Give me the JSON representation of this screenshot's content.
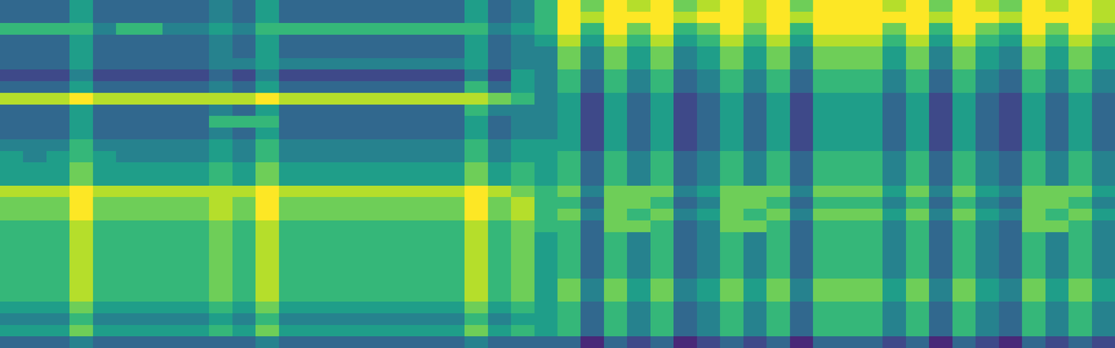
{
  "chart_data": {
    "type": "heatmap",
    "tick_labels": false,
    "zlim": [
      0,
      9
    ],
    "cells": [
      [
        3,
        3,
        3,
        5,
        3,
        3,
        3,
        3,
        3,
        4,
        3,
        5,
        3,
        3,
        3,
        3,
        3,
        3,
        3,
        3,
        5,
        3,
        4,
        6,
        9,
        7,
        9,
        8,
        9,
        7,
        8,
        9,
        8,
        9,
        7,
        9,
        9,
        9,
        8,
        9,
        7,
        9,
        8,
        7,
        9,
        8,
        9,
        8
      ],
      [
        3,
        3,
        3,
        5,
        3,
        3,
        3,
        3,
        3,
        4,
        3,
        5,
        3,
        3,
        3,
        3,
        3,
        3,
        3,
        3,
        5,
        3,
        4,
        6,
        9,
        8,
        9,
        9,
        9,
        8,
        9,
        9,
        8,
        9,
        8,
        9,
        9,
        9,
        9,
        9,
        8,
        9,
        9,
        8,
        9,
        9,
        9,
        8
      ],
      [
        6,
        6,
        6,
        6,
        4,
        6,
        6,
        4,
        4,
        5,
        4,
        6,
        6,
        6,
        6,
        6,
        6,
        6,
        6,
        6,
        6,
        4,
        5,
        6,
        9,
        6,
        9,
        7,
        9,
        6,
        7,
        9,
        7,
        9,
        6,
        9,
        9,
        9,
        7,
        9,
        6,
        9,
        7,
        6,
        9,
        7,
        9,
        7
      ],
      [
        3,
        3,
        3,
        5,
        3,
        3,
        3,
        3,
        3,
        4,
        3,
        5,
        3,
        3,
        3,
        3,
        3,
        3,
        3,
        3,
        5,
        3,
        4,
        5,
        8,
        5,
        8,
        6,
        8,
        5,
        6,
        8,
        6,
        8,
        5,
        8,
        8,
        8,
        6,
        8,
        5,
        8,
        6,
        5,
        8,
        6,
        8,
        6
      ],
      [
        3,
        3,
        3,
        5,
        3,
        3,
        3,
        3,
        3,
        4,
        3,
        5,
        3,
        3,
        3,
        3,
        3,
        3,
        3,
        3,
        5,
        3,
        4,
        4,
        7,
        4,
        7,
        5,
        7,
        4,
        5,
        7,
        5,
        7,
        4,
        7,
        7,
        7,
        5,
        7,
        4,
        7,
        5,
        4,
        7,
        5,
        7,
        5
      ],
      [
        3,
        3,
        3,
        5,
        3,
        3,
        3,
        3,
        3,
        4,
        4,
        5,
        4,
        4,
        4,
        4,
        4,
        4,
        4,
        4,
        5,
        3,
        4,
        4,
        7,
        4,
        7,
        5,
        7,
        4,
        5,
        7,
        5,
        7,
        4,
        7,
        7,
        7,
        5,
        7,
        4,
        7,
        5,
        4,
        7,
        5,
        7,
        5
      ],
      [
        2,
        2,
        2,
        4,
        2,
        2,
        2,
        2,
        2,
        3,
        2,
        4,
        2,
        2,
        2,
        2,
        2,
        2,
        2,
        2,
        4,
        2,
        5,
        4,
        6,
        3,
        6,
        4,
        6,
        3,
        4,
        6,
        4,
        6,
        3,
        6,
        6,
        6,
        4,
        6,
        3,
        6,
        4,
        3,
        6,
        4,
        6,
        4
      ],
      [
        3,
        3,
        3,
        5,
        3,
        3,
        3,
        3,
        3,
        4,
        3,
        5,
        3,
        3,
        3,
        3,
        3,
        3,
        3,
        3,
        6,
        3,
        5,
        4,
        6,
        3,
        6,
        4,
        6,
        3,
        4,
        6,
        4,
        6,
        3,
        6,
        6,
        6,
        4,
        6,
        3,
        6,
        4,
        3,
        6,
        4,
        6,
        4
      ],
      [
        8,
        8,
        8,
        9,
        8,
        8,
        8,
        8,
        8,
        8,
        8,
        9,
        8,
        8,
        8,
        8,
        8,
        8,
        8,
        8,
        8,
        7,
        6,
        4,
        5,
        2,
        5,
        3,
        5,
        2,
        3,
        5,
        3,
        5,
        2,
        5,
        5,
        5,
        3,
        5,
        2,
        5,
        3,
        2,
        5,
        3,
        5,
        3
      ],
      [
        3,
        3,
        3,
        5,
        3,
        3,
        3,
        3,
        3,
        4,
        3,
        5,
        3,
        3,
        3,
        3,
        3,
        3,
        3,
        3,
        6,
        4,
        4,
        4,
        5,
        2,
        5,
        3,
        5,
        2,
        3,
        5,
        3,
        5,
        2,
        5,
        5,
        5,
        3,
        5,
        2,
        5,
        3,
        2,
        5,
        3,
        5,
        3
      ],
      [
        3,
        3,
        3,
        5,
        3,
        3,
        3,
        3,
        3,
        6,
        6,
        6,
        3,
        3,
        3,
        3,
        3,
        3,
        3,
        3,
        5,
        3,
        4,
        4,
        5,
        2,
        5,
        3,
        5,
        2,
        3,
        5,
        3,
        5,
        2,
        5,
        5,
        5,
        3,
        5,
        2,
        5,
        3,
        2,
        5,
        3,
        5,
        3
      ],
      [
        3,
        3,
        3,
        5,
        3,
        3,
        3,
        3,
        3,
        4,
        3,
        5,
        3,
        3,
        3,
        3,
        3,
        3,
        3,
        3,
        5,
        3,
        4,
        4,
        5,
        2,
        5,
        3,
        5,
        2,
        3,
        5,
        3,
        5,
        2,
        5,
        5,
        5,
        3,
        5,
        2,
        5,
        3,
        2,
        5,
        3,
        5,
        3
      ],
      [
        4,
        4,
        4,
        6,
        4,
        4,
        4,
        4,
        4,
        5,
        4,
        6,
        4,
        4,
        4,
        4,
        4,
        4,
        4,
        4,
        6,
        4,
        5,
        5,
        5,
        2,
        5,
        3,
        5,
        2,
        3,
        5,
        3,
        5,
        2,
        5,
        5,
        5,
        3,
        5,
        2,
        5,
        3,
        2,
        5,
        3,
        5,
        3
      ],
      [
        5,
        4,
        5,
        6,
        5,
        4,
        4,
        4,
        4,
        5,
        4,
        6,
        4,
        4,
        4,
        4,
        4,
        4,
        4,
        4,
        6,
        4,
        5,
        5,
        6,
        3,
        6,
        4,
        6,
        3,
        4,
        6,
        4,
        6,
        3,
        6,
        6,
        6,
        4,
        6,
        3,
        6,
        4,
        3,
        6,
        4,
        6,
        4
      ],
      [
        5,
        5,
        5,
        7,
        5,
        5,
        5,
        5,
        5,
        6,
        5,
        7,
        5,
        5,
        5,
        5,
        5,
        5,
        5,
        5,
        7,
        5,
        6,
        5,
        6,
        3,
        6,
        4,
        6,
        3,
        4,
        6,
        4,
        6,
        3,
        6,
        6,
        6,
        4,
        6,
        3,
        6,
        4,
        3,
        6,
        4,
        6,
        4
      ],
      [
        5,
        5,
        5,
        7,
        5,
        5,
        5,
        5,
        5,
        6,
        5,
        7,
        5,
        5,
        5,
        5,
        5,
        5,
        5,
        5,
        7,
        5,
        6,
        5,
        6,
        3,
        6,
        4,
        6,
        3,
        4,
        6,
        4,
        6,
        3,
        6,
        6,
        6,
        4,
        6,
        3,
        6,
        4,
        3,
        6,
        4,
        6,
        4
      ],
      [
        8,
        8,
        8,
        9,
        8,
        8,
        8,
        8,
        8,
        8,
        8,
        9,
        8,
        8,
        8,
        8,
        8,
        8,
        8,
        8,
        9,
        8,
        7,
        6,
        7,
        4,
        7,
        7,
        7,
        4,
        5,
        7,
        7,
        7,
        4,
        7,
        7,
        7,
        5,
        7,
        4,
        7,
        5,
        4,
        7,
        7,
        7,
        5
      ],
      [
        7,
        7,
        7,
        9,
        7,
        7,
        7,
        7,
        7,
        8,
        7,
        9,
        7,
        7,
        7,
        7,
        7,
        7,
        7,
        7,
        9,
        7,
        8,
        6,
        6,
        3,
        7,
        7,
        6,
        3,
        4,
        7,
        7,
        6,
        3,
        6,
        6,
        6,
        4,
        6,
        3,
        6,
        4,
        3,
        7,
        7,
        6,
        4
      ],
      [
        7,
        7,
        7,
        9,
        7,
        7,
        7,
        7,
        7,
        8,
        7,
        9,
        7,
        7,
        7,
        7,
        7,
        7,
        7,
        7,
        9,
        7,
        8,
        6,
        7,
        4,
        7,
        6,
        7,
        4,
        5,
        7,
        6,
        7,
        4,
        7,
        7,
        7,
        5,
        7,
        4,
        7,
        5,
        4,
        7,
        6,
        7,
        5
      ],
      [
        6,
        6,
        6,
        8,
        6,
        6,
        6,
        6,
        6,
        7,
        6,
        8,
        6,
        6,
        6,
        6,
        6,
        6,
        6,
        6,
        8,
        6,
        7,
        6,
        6,
        3,
        7,
        7,
        6,
        3,
        4,
        7,
        7,
        6,
        3,
        6,
        6,
        6,
        4,
        6,
        3,
        6,
        4,
        3,
        7,
        7,
        6,
        4
      ],
      [
        6,
        6,
        6,
        8,
        6,
        6,
        6,
        6,
        6,
        7,
        6,
        8,
        6,
        6,
        6,
        6,
        6,
        6,
        6,
        6,
        8,
        6,
        7,
        5,
        6,
        3,
        6,
        4,
        6,
        3,
        4,
        6,
        4,
        6,
        3,
        6,
        6,
        6,
        4,
        6,
        3,
        6,
        4,
        3,
        6,
        4,
        6,
        4
      ],
      [
        6,
        6,
        6,
        8,
        6,
        6,
        6,
        6,
        6,
        7,
        6,
        8,
        6,
        6,
        6,
        6,
        6,
        6,
        6,
        6,
        8,
        6,
        7,
        5,
        6,
        3,
        6,
        4,
        6,
        3,
        4,
        6,
        4,
        6,
        3,
        6,
        6,
        6,
        4,
        6,
        3,
        6,
        4,
        3,
        6,
        4,
        6,
        4
      ],
      [
        6,
        6,
        6,
        8,
        6,
        6,
        6,
        6,
        6,
        7,
        6,
        8,
        6,
        6,
        6,
        6,
        6,
        6,
        6,
        6,
        8,
        6,
        7,
        5,
        6,
        3,
        6,
        4,
        6,
        3,
        4,
        6,
        4,
        6,
        3,
        6,
        6,
        6,
        4,
        6,
        3,
        6,
        4,
        3,
        6,
        4,
        6,
        4
      ],
      [
        6,
        6,
        6,
        8,
        6,
        6,
        6,
        6,
        6,
        7,
        6,
        8,
        6,
        6,
        6,
        6,
        6,
        6,
        6,
        6,
        8,
        6,
        7,
        5,
        6,
        3,
        6,
        4,
        6,
        3,
        4,
        6,
        4,
        6,
        3,
        6,
        6,
        6,
        4,
        6,
        3,
        6,
        4,
        3,
        6,
        4,
        6,
        4
      ],
      [
        6,
        6,
        6,
        8,
        6,
        6,
        6,
        6,
        6,
        7,
        6,
        8,
        6,
        6,
        6,
        6,
        6,
        6,
        6,
        6,
        8,
        6,
        7,
        5,
        7,
        4,
        7,
        5,
        7,
        4,
        5,
        7,
        5,
        7,
        4,
        7,
        7,
        7,
        5,
        7,
        4,
        7,
        5,
        4,
        7,
        5,
        7,
        5
      ],
      [
        6,
        6,
        6,
        8,
        6,
        6,
        6,
        6,
        6,
        7,
        6,
        8,
        6,
        6,
        6,
        6,
        6,
        6,
        6,
        6,
        8,
        6,
        7,
        5,
        7,
        4,
        7,
        5,
        7,
        4,
        5,
        7,
        5,
        7,
        4,
        7,
        7,
        7,
        5,
        7,
        4,
        7,
        5,
        4,
        7,
        5,
        7,
        5
      ],
      [
        5,
        5,
        5,
        7,
        5,
        5,
        5,
        5,
        5,
        6,
        5,
        7,
        5,
        5,
        5,
        5,
        5,
        5,
        5,
        5,
        7,
        5,
        6,
        5,
        6,
        3,
        6,
        4,
        6,
        3,
        4,
        6,
        4,
        6,
        3,
        6,
        6,
        6,
        4,
        6,
        3,
        6,
        4,
        3,
        6,
        4,
        6,
        4
      ],
      [
        4,
        4,
        4,
        6,
        4,
        4,
        4,
        4,
        4,
        5,
        4,
        6,
        4,
        4,
        4,
        4,
        4,
        4,
        4,
        4,
        6,
        4,
        5,
        5,
        6,
        3,
        6,
        4,
        6,
        3,
        4,
        6,
        4,
        6,
        3,
        6,
        6,
        6,
        4,
        6,
        3,
        6,
        4,
        3,
        6,
        4,
        6,
        4
      ],
      [
        5,
        5,
        5,
        7,
        5,
        5,
        5,
        5,
        5,
        6,
        5,
        7,
        5,
        5,
        5,
        5,
        5,
        5,
        5,
        5,
        7,
        5,
        6,
        5,
        6,
        3,
        6,
        4,
        6,
        3,
        4,
        6,
        4,
        6,
        3,
        6,
        6,
        6,
        4,
        6,
        3,
        6,
        4,
        3,
        6,
        4,
        6,
        4
      ],
      [
        3,
        3,
        3,
        4,
        3,
        3,
        3,
        3,
        3,
        3,
        3,
        4,
        3,
        3,
        3,
        3,
        3,
        3,
        3,
        3,
        4,
        3,
        3,
        3,
        3,
        1,
        3,
        2,
        3,
        1,
        2,
        3,
        2,
        3,
        1,
        3,
        3,
        3,
        2,
        3,
        1,
        3,
        2,
        1,
        3,
        2,
        3,
        2
      ]
    ]
  }
}
